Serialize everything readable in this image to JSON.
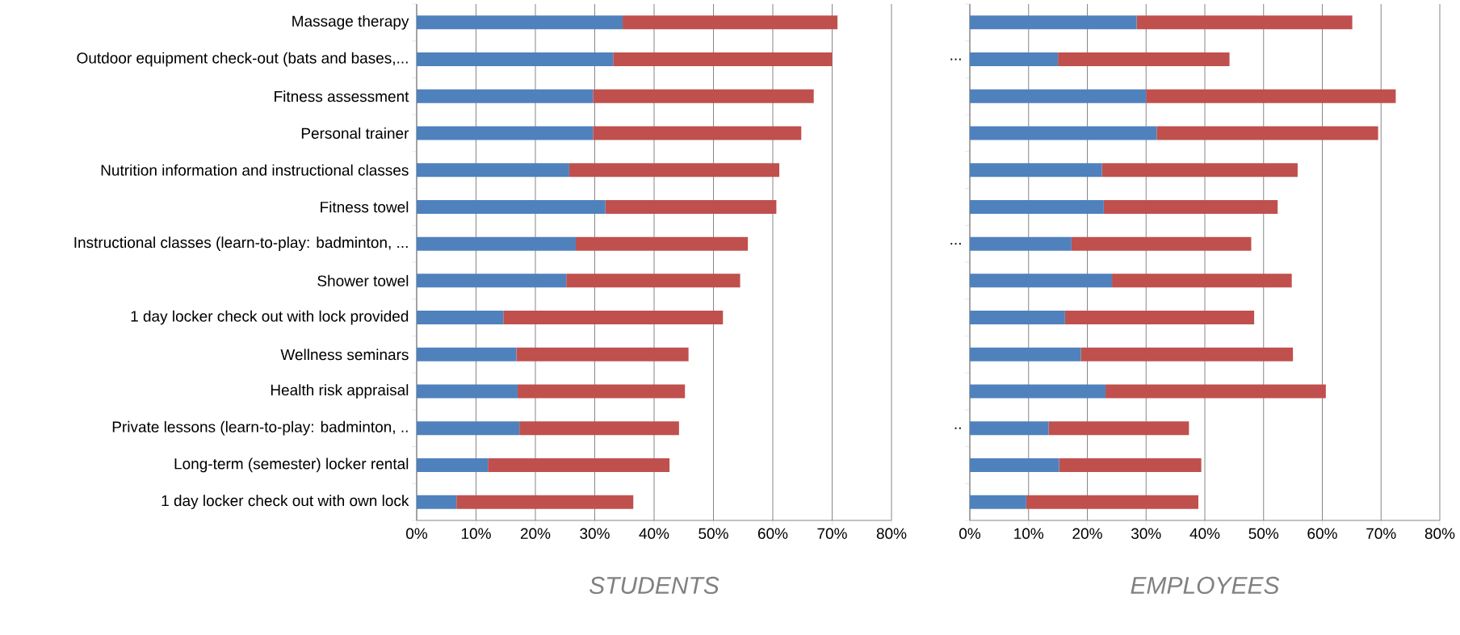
{
  "chart_data": [
    {
      "type": "bar",
      "orientation": "horizontal",
      "stacked": true,
      "xlabel": "STUDENTS",
      "categories": [
        "Massage therapy",
        "Outdoor equipment check-out (bats and bases,...",
        "Fitness assessment",
        "Personal trainer",
        "Nutrition information and instructional classes",
        "Fitness towel",
        "Instructional classes (learn-to-play: badminton, ...",
        "Shower towel",
        "1 day locker check out with lock provided",
        "Wellness seminars",
        "Health risk appraisal",
        "Private lessons (learn-to-play: badminton, ..",
        "Long-term (semester) locker rental",
        "1 day locker check out with own lock"
      ],
      "series": [
        {
          "color": "#4f81bd",
          "values": [
            34.7,
            33.1,
            29.7,
            29.7,
            25.7,
            31.8,
            26.8,
            25.2,
            14.6,
            16.8,
            17.0,
            17.3,
            12.0,
            6.7
          ]
        },
        {
          "color": "#c0504d",
          "values": [
            36.2,
            36.9,
            37.2,
            35.1,
            35.4,
            28.8,
            29.0,
            29.3,
            37.0,
            29.0,
            28.2,
            26.9,
            30.6,
            29.8
          ]
        }
      ],
      "xlim": [
        0,
        80
      ],
      "xticks": [
        {
          "value": 0,
          "label": "0%"
        },
        {
          "value": 10,
          "label": "10%"
        },
        {
          "value": 20,
          "label": "20%"
        },
        {
          "value": 30,
          "label": "30%"
        },
        {
          "value": 40,
          "label": "40%"
        },
        {
          "value": 50,
          "label": "50%"
        },
        {
          "value": 60,
          "label": "60%"
        },
        {
          "value": 70,
          "label": "70%"
        },
        {
          "value": 80,
          "label": "80%"
        }
      ],
      "grid": "x",
      "legend": false
    },
    {
      "type": "bar",
      "orientation": "horizontal",
      "stacked": true,
      "xlabel": "EMPLOYEES",
      "categories": [
        null,
        "...",
        null,
        null,
        null,
        null,
        "...",
        null,
        null,
        null,
        null,
        "..",
        null,
        null
      ],
      "series": [
        {
          "color": "#4f81bd",
          "values": [
            28.4,
            15.0,
            30.0,
            31.8,
            22.5,
            22.8,
            17.3,
            24.2,
            16.2,
            18.9,
            23.1,
            13.4,
            15.2,
            9.6
          ]
        },
        {
          "color": "#c0504d",
          "values": [
            36.7,
            29.2,
            42.5,
            37.7,
            33.3,
            29.6,
            30.6,
            30.6,
            32.2,
            36.1,
            37.5,
            23.9,
            24.2,
            29.3
          ]
        }
      ],
      "xlim": [
        0,
        80
      ],
      "xticks": [
        {
          "value": 0,
          "label": "0%"
        },
        {
          "value": 10,
          "label": "10%"
        },
        {
          "value": 20,
          "label": "20%"
        },
        {
          "value": 30,
          "label": "30%"
        },
        {
          "value": 40,
          "label": "40%"
        },
        {
          "value": 50,
          "label": "50%"
        },
        {
          "value": 60,
          "label": "60%"
        },
        {
          "value": 70,
          "label": "70%"
        },
        {
          "value": 80,
          "label": "80%"
        }
      ],
      "grid": "x",
      "legend": false
    }
  ]
}
